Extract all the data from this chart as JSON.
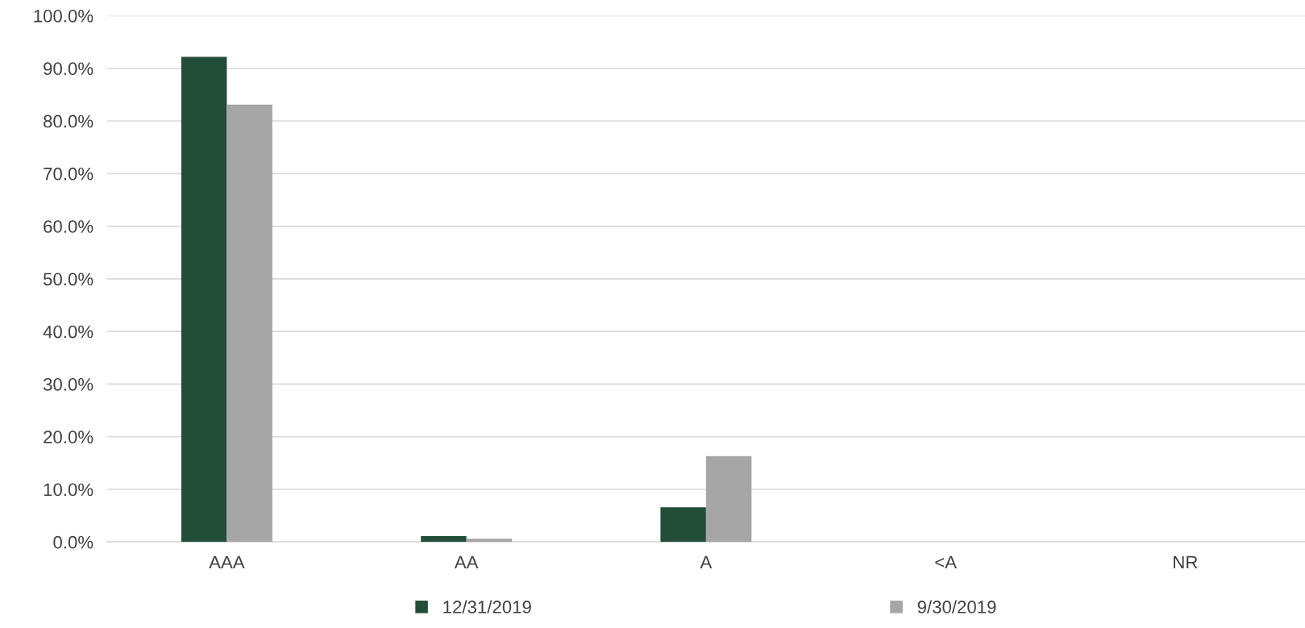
{
  "chart_data": {
    "type": "bar",
    "categories": [
      "AAA",
      "AA",
      "A",
      "<A",
      "NR"
    ],
    "series": [
      {
        "name": "12/31/2019",
        "color": "#224d38",
        "values": [
          92.2,
          1.1,
          6.6,
          0,
          0
        ]
      },
      {
        "name": "9/30/2019",
        "color": "#a6a6a6",
        "values": [
          83.1,
          0.6,
          16.3,
          0,
          0
        ]
      }
    ],
    "ylim": [
      0,
      100
    ],
    "yticks": [
      {
        "value": 0,
        "label": "0.0%"
      },
      {
        "value": 10,
        "label": "10.0%"
      },
      {
        "value": 20,
        "label": "20.0%"
      },
      {
        "value": 30,
        "label": "30.0%"
      },
      {
        "value": 40,
        "label": "40.0%"
      },
      {
        "value": 50,
        "label": "50.0%"
      },
      {
        "value": 60,
        "label": "60.0%"
      },
      {
        "value": 70,
        "label": "70.0%"
      },
      {
        "value": 80,
        "label": "80.0%"
      },
      {
        "value": 90,
        "label": "90.0%"
      },
      {
        "value": 100,
        "label": "100.0%"
      }
    ],
    "grid": "y",
    "legend": "bottom"
  }
}
